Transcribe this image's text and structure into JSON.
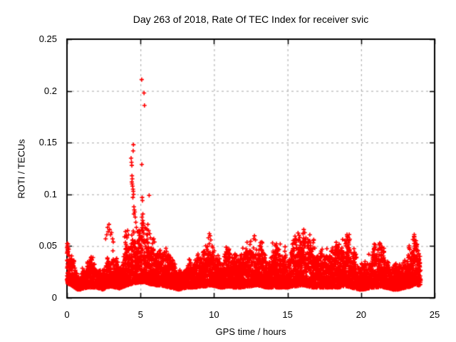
{
  "chart_data": {
    "type": "scatter",
    "title": "Day 263 of 2018, Rate Of TEC Index for receiver svic",
    "xlabel": "GPS time / hours",
    "ylabel": "ROTI / TECUs",
    "xlim": [
      0,
      25
    ],
    "ylim": [
      0,
      0.25
    ],
    "xticks": [
      0,
      5,
      10,
      15,
      20,
      25
    ],
    "yticks": [
      0,
      0.05,
      0.1,
      0.15,
      0.2,
      0.25
    ],
    "xtick_labels": [
      "0",
      "5",
      "10",
      "15",
      "20",
      "25"
    ],
    "ytick_labels": [
      "0",
      "0.05",
      "0.1",
      "0.15",
      "0.2",
      "0.25"
    ],
    "grid": {
      "visible": true,
      "color": "#a6a6a6",
      "dash": [
        3,
        4
      ]
    },
    "legend": "none",
    "marker": {
      "shape": "plus",
      "color": "#ff0000",
      "size": 6,
      "stroke_width": 1.6
    },
    "axis_color": "#000000",
    "data_time_range": [
      0,
      24.05
    ],
    "max_point": [
      5.08,
      0.211
    ],
    "band_envelope": [
      [
        0.0,
        0.013,
        0.046
      ],
      [
        0.15,
        0.013,
        0.044
      ],
      [
        0.3,
        0.012,
        0.04
      ],
      [
        0.5,
        0.01,
        0.032
      ],
      [
        0.7,
        0.008,
        0.024
      ],
      [
        0.9,
        0.008,
        0.022
      ],
      [
        1.1,
        0.009,
        0.026
      ],
      [
        1.4,
        0.01,
        0.031
      ],
      [
        1.7,
        0.01,
        0.033
      ],
      [
        2.0,
        0.01,
        0.03
      ],
      [
        2.2,
        0.009,
        0.026
      ],
      [
        2.45,
        0.008,
        0.023
      ],
      [
        2.7,
        0.01,
        0.03
      ],
      [
        3.0,
        0.011,
        0.036
      ],
      [
        3.3,
        0.01,
        0.034
      ],
      [
        3.6,
        0.009,
        0.029
      ],
      [
        3.9,
        0.011,
        0.04
      ],
      [
        4.1,
        0.012,
        0.05
      ],
      [
        4.3,
        0.013,
        0.057
      ],
      [
        4.5,
        0.014,
        0.06
      ],
      [
        4.7,
        0.014,
        0.054
      ],
      [
        4.9,
        0.015,
        0.058
      ],
      [
        5.1,
        0.015,
        0.064
      ],
      [
        5.3,
        0.015,
        0.058
      ],
      [
        5.5,
        0.014,
        0.056
      ],
      [
        5.7,
        0.013,
        0.049
      ],
      [
        5.9,
        0.013,
        0.052
      ],
      [
        6.1,
        0.012,
        0.044
      ],
      [
        6.4,
        0.012,
        0.04
      ],
      [
        6.7,
        0.011,
        0.037
      ],
      [
        7.0,
        0.01,
        0.033
      ],
      [
        7.3,
        0.009,
        0.028
      ],
      [
        7.6,
        0.008,
        0.025
      ],
      [
        7.9,
        0.009,
        0.028
      ],
      [
        8.2,
        0.01,
        0.032
      ],
      [
        8.5,
        0.01,
        0.033
      ],
      [
        8.8,
        0.01,
        0.036
      ],
      [
        9.1,
        0.011,
        0.037
      ],
      [
        9.4,
        0.011,
        0.044
      ],
      [
        9.65,
        0.012,
        0.056
      ],
      [
        9.85,
        0.012,
        0.052
      ],
      [
        10.1,
        0.011,
        0.04
      ],
      [
        10.4,
        0.01,
        0.035
      ],
      [
        10.7,
        0.01,
        0.04
      ],
      [
        11.0,
        0.011,
        0.044
      ],
      [
        11.3,
        0.01,
        0.038
      ],
      [
        11.6,
        0.01,
        0.037
      ],
      [
        11.9,
        0.01,
        0.04
      ],
      [
        12.2,
        0.011,
        0.043
      ],
      [
        12.5,
        0.011,
        0.046
      ],
      [
        12.75,
        0.012,
        0.055
      ],
      [
        13.0,
        0.012,
        0.05
      ],
      [
        13.25,
        0.011,
        0.044
      ],
      [
        13.5,
        0.01,
        0.04
      ],
      [
        13.8,
        0.01,
        0.037
      ],
      [
        14.1,
        0.01,
        0.039
      ],
      [
        14.4,
        0.01,
        0.042
      ],
      [
        14.7,
        0.01,
        0.038
      ],
      [
        15.0,
        0.01,
        0.041
      ],
      [
        15.3,
        0.011,
        0.044
      ],
      [
        15.6,
        0.011,
        0.047
      ],
      [
        15.9,
        0.012,
        0.054
      ],
      [
        16.15,
        0.012,
        0.06
      ],
      [
        16.4,
        0.011,
        0.048
      ],
      [
        16.7,
        0.01,
        0.043
      ],
      [
        17.0,
        0.01,
        0.044
      ],
      [
        17.3,
        0.01,
        0.046
      ],
      [
        17.6,
        0.01,
        0.041
      ],
      [
        17.9,
        0.01,
        0.038
      ],
      [
        18.2,
        0.01,
        0.04
      ],
      [
        18.5,
        0.01,
        0.043
      ],
      [
        18.8,
        0.011,
        0.047
      ],
      [
        19.05,
        0.011,
        0.053
      ],
      [
        19.3,
        0.01,
        0.045
      ],
      [
        19.6,
        0.009,
        0.034
      ],
      [
        19.9,
        0.008,
        0.029
      ],
      [
        20.2,
        0.008,
        0.028
      ],
      [
        20.5,
        0.009,
        0.036
      ],
      [
        20.8,
        0.01,
        0.044
      ],
      [
        21.1,
        0.01,
        0.041
      ],
      [
        21.35,
        0.011,
        0.048
      ],
      [
        21.6,
        0.01,
        0.04
      ],
      [
        21.9,
        0.009,
        0.033
      ],
      [
        22.2,
        0.008,
        0.029
      ],
      [
        22.5,
        0.008,
        0.027
      ],
      [
        22.8,
        0.009,
        0.031
      ],
      [
        23.1,
        0.01,
        0.036
      ],
      [
        23.4,
        0.011,
        0.043
      ],
      [
        23.65,
        0.013,
        0.052
      ],
      [
        23.85,
        0.012,
        0.046
      ],
      [
        24.0,
        0.012,
        0.04
      ],
      [
        24.05,
        0.013,
        0.032
      ]
    ],
    "outliers": [
      [
        0.03,
        0.05
      ],
      [
        0.07,
        0.052
      ],
      [
        0.12,
        0.047
      ],
      [
        2.63,
        0.057
      ],
      [
        2.7,
        0.061
      ],
      [
        2.76,
        0.068
      ],
      [
        2.8,
        0.064
      ],
      [
        2.86,
        0.071
      ],
      [
        2.9,
        0.066
      ],
      [
        2.97,
        0.061
      ],
      [
        3.03,
        0.063
      ],
      [
        3.1,
        0.057
      ],
      [
        3.15,
        0.054
      ],
      [
        3.92,
        0.059
      ],
      [
        3.98,
        0.064
      ],
      [
        4.03,
        0.061
      ],
      [
        4.08,
        0.058
      ],
      [
        4.13,
        0.065
      ],
      [
        4.18,
        0.061
      ],
      [
        4.36,
        0.135
      ],
      [
        4.39,
        0.131
      ],
      [
        4.41,
        0.128
      ],
      [
        4.42,
        0.118
      ],
      [
        4.44,
        0.115
      ],
      [
        4.41,
        0.112
      ],
      [
        4.43,
        0.11
      ],
      [
        4.46,
        0.108
      ],
      [
        4.5,
        0.142
      ],
      [
        4.52,
        0.148
      ],
      [
        4.49,
        0.105
      ],
      [
        4.51,
        0.103
      ],
      [
        4.53,
        0.1
      ],
      [
        4.48,
        0.097
      ],
      [
        4.55,
        0.088
      ],
      [
        4.58,
        0.085
      ],
      [
        4.61,
        0.083
      ],
      [
        4.55,
        0.081
      ],
      [
        4.64,
        0.078
      ],
      [
        4.68,
        0.073
      ],
      [
        4.72,
        0.068
      ],
      [
        4.78,
        0.064
      ],
      [
        5.08,
        0.211
      ],
      [
        5.24,
        0.198
      ],
      [
        5.27,
        0.186
      ],
      [
        5.09,
        0.129
      ],
      [
        5.11,
        0.097
      ],
      [
        5.13,
        0.094
      ],
      [
        5.16,
        0.081
      ],
      [
        5.1,
        0.078
      ],
      [
        5.2,
        0.072
      ],
      [
        5.3,
        0.068
      ],
      [
        5.36,
        0.067
      ],
      [
        5.42,
        0.061
      ],
      [
        5.5,
        0.071
      ],
      [
        5.55,
        0.065
      ],
      [
        5.59,
        0.099
      ],
      [
        5.63,
        0.062
      ],
      [
        5.68,
        0.058
      ],
      [
        5.9,
        0.057
      ],
      [
        5.95,
        0.054
      ],
      [
        9.62,
        0.058
      ],
      [
        9.68,
        0.062
      ],
      [
        9.73,
        0.06
      ],
      [
        9.78,
        0.056
      ],
      [
        10.9,
        0.047
      ],
      [
        11.0,
        0.046
      ],
      [
        12.7,
        0.057
      ],
      [
        12.75,
        0.06
      ],
      [
        12.82,
        0.056
      ],
      [
        13.98,
        0.053
      ],
      [
        14.13,
        0.051
      ],
      [
        14.5,
        0.052
      ],
      [
        16.05,
        0.062
      ],
      [
        16.1,
        0.066
      ],
      [
        16.17,
        0.063
      ],
      [
        16.25,
        0.058
      ],
      [
        17.35,
        0.047
      ],
      [
        19.0,
        0.055
      ],
      [
        19.08,
        0.057
      ],
      [
        19.15,
        0.053
      ],
      [
        20.95,
        0.049
      ],
      [
        21.3,
        0.051
      ],
      [
        21.4,
        0.049
      ],
      [
        23.65,
        0.055
      ],
      [
        23.7,
        0.053
      ],
      [
        23.75,
        0.051
      ]
    ],
    "density": {
      "dt": 0.01,
      "points_per_column": 3
    },
    "seed": 20180263
  }
}
